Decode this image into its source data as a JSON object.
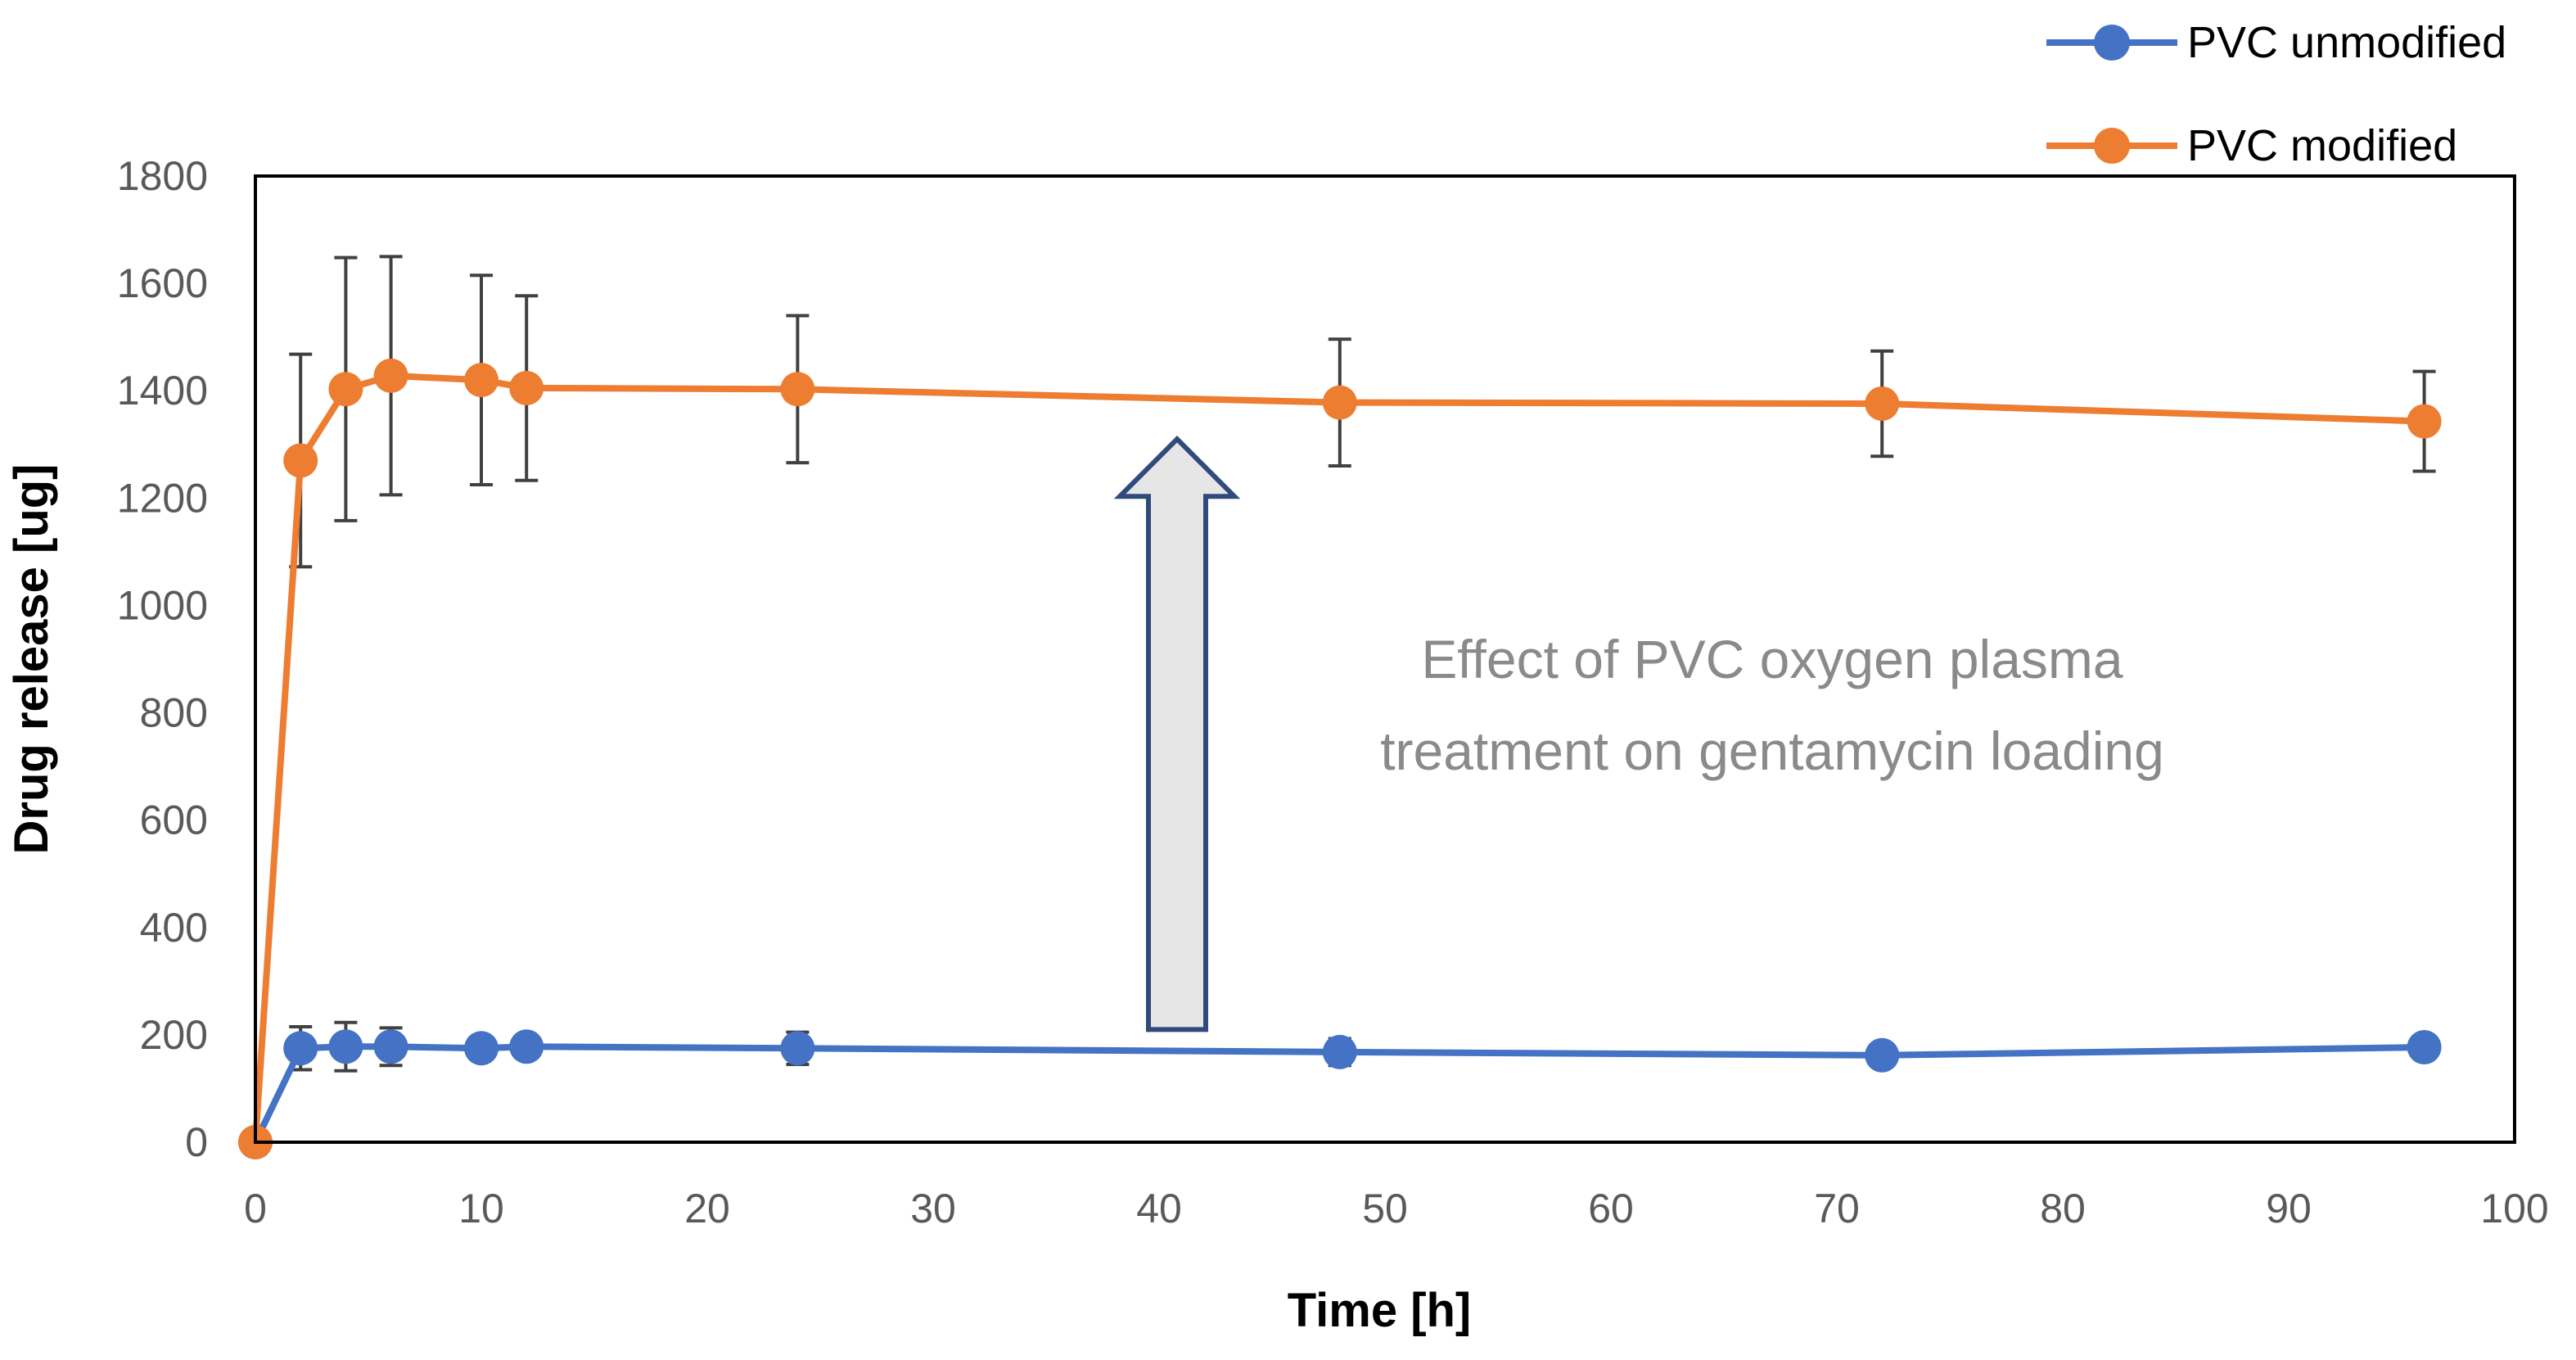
{
  "chart_data": {
    "type": "line",
    "title": "",
    "xlabel": "Time [h]",
    "ylabel": "Drug release [ug]",
    "xlim": [
      0,
      100
    ],
    "ylim": [
      0,
      1800
    ],
    "xticks": [
      0,
      10,
      20,
      30,
      40,
      50,
      60,
      70,
      80,
      90,
      100
    ],
    "yticks": [
      0,
      200,
      400,
      600,
      800,
      1000,
      1200,
      1400,
      1600,
      1800
    ],
    "grid": false,
    "legend_position": "top-right",
    "x": [
      0,
      2,
      4,
      6,
      10,
      12,
      24,
      48,
      72,
      96
    ],
    "series": [
      {
        "name": "PVC unmodified",
        "color": "#4472C4",
        "values": [
          0,
          175,
          178,
          178,
          175,
          178,
          175,
          168,
          162,
          177
        ],
        "errors": [
          0,
          40,
          45,
          35,
          20,
          20,
          30,
          25,
          15,
          15
        ]
      },
      {
        "name": "PVC modified",
        "color": "#ED7D31",
        "values": [
          0,
          1270,
          1403,
          1428,
          1420,
          1405,
          1403,
          1378,
          1376,
          1343
        ],
        "errors": [
          0,
          198,
          245,
          222,
          195,
          172,
          137,
          118,
          98,
          93
        ]
      }
    ],
    "annotation": {
      "lines": [
        "Effect of PVC oxygen plasma",
        "treatment on gentamycin loading"
      ],
      "arrow_from": [
        40,
        210
      ],
      "arrow_to": [
        40,
        1310
      ],
      "arrow_fill": "#e6e6e6",
      "arrow_stroke": "#2f4b7c"
    }
  }
}
